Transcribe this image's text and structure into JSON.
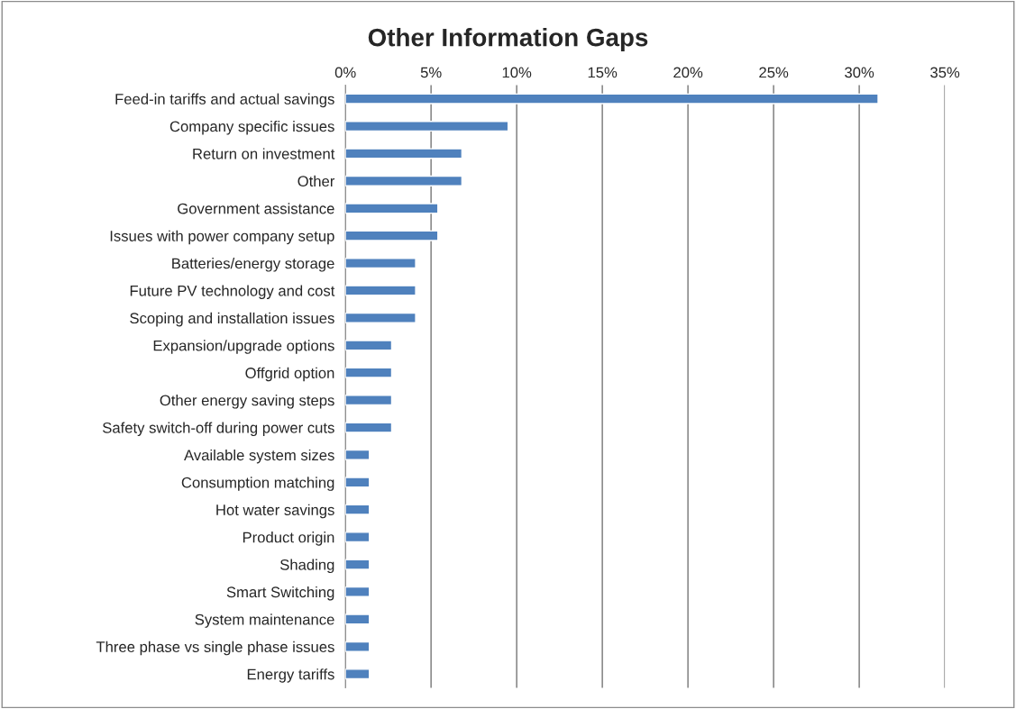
{
  "chart_data": {
    "type": "bar",
    "orientation": "horizontal",
    "title": "Other Information Gaps",
    "categories": [
      "Feed-in tariffs and actual savings",
      "Company specific issues",
      "Return on investment",
      "Other",
      "Government assistance",
      "Issues with power company setup",
      "Batteries/energy storage",
      "Future PV technology and cost",
      "Scoping and installation issues",
      "Expansion/upgrade options",
      "Offgrid option",
      "Other energy saving steps",
      "Safety switch-off during power cuts",
      "Available system sizes",
      "Consumption matching",
      "Hot water savings",
      "Product origin",
      "Shading",
      "Smart Switching",
      "System maintenance",
      "Three phase vs single phase issues",
      "Energy tariffs"
    ],
    "values": [
      31.1,
      9.5,
      6.8,
      6.8,
      5.4,
      5.4,
      4.1,
      4.1,
      4.1,
      2.7,
      2.7,
      2.7,
      2.7,
      1.4,
      1.4,
      1.4,
      1.4,
      1.4,
      1.4,
      1.4,
      1.4,
      1.4
    ],
    "color": "#4f81bd",
    "xlim": [
      0,
      35
    ],
    "xticks": [
      {
        "value": 0,
        "label": "0%"
      },
      {
        "value": 5,
        "label": "5%"
      },
      {
        "value": 10,
        "label": "10%"
      },
      {
        "value": 15,
        "label": "15%"
      },
      {
        "value": 20,
        "label": "20%"
      },
      {
        "value": 25,
        "label": "25%"
      },
      {
        "value": 30,
        "label": "30%"
      },
      {
        "value": 35,
        "label": "35%"
      }
    ],
    "grid": "x"
  }
}
